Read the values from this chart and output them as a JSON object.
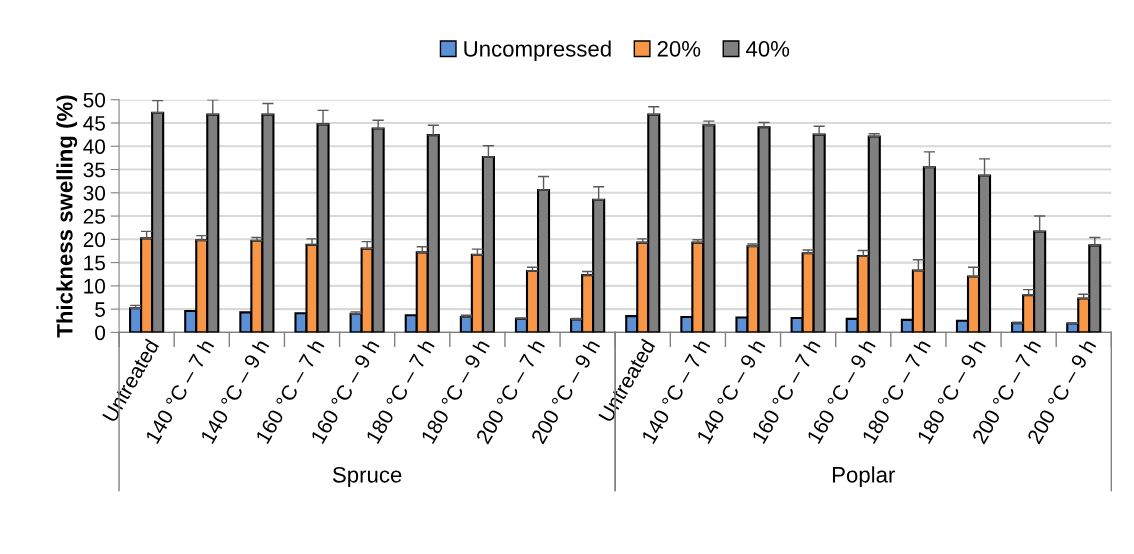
{
  "chart_data": {
    "type": "bar",
    "ylabel": "Thickness swelling (%)",
    "categories": [
      "Untreated",
      "140 °C – 7 h",
      "140 °C – 9 h",
      "160 °C – 7 h",
      "160 °C – 9 h",
      "180 °C – 7 h",
      "180 °C – 9 h",
      "200 °C – 7 h",
      "200 °C – 9 h",
      "Untreated",
      "140 °C – 7 h",
      "140 °C – 9 h",
      "160 °C – 7 h",
      "160 °C – 9 h",
      "180 °C – 7 h",
      "180 °C – 9 h",
      "200 °C – 7 h",
      "200 °C – 9 h"
    ],
    "annotations": [
      "Spruce",
      "Poplar"
    ],
    "series": [
      {
        "name": "Uncompressed",
        "color": "#5b8fd6",
        "values": [
          5.2,
          4.6,
          4.3,
          4.1,
          4.0,
          3.7,
          3.3,
          2.9,
          2.8,
          3.5,
          3.3,
          3.2,
          3.1,
          2.9,
          2.7,
          2.5,
          2.0,
          1.9
        ],
        "errors": [
          0.6,
          null,
          null,
          null,
          0.4,
          null,
          0.4,
          0.2,
          0.2,
          null,
          null,
          null,
          null,
          null,
          null,
          null,
          0.2,
          0.2
        ]
      },
      {
        "name": "20%",
        "color": "#f79646",
        "values": [
          20.2,
          19.8,
          19.7,
          18.8,
          18.0,
          17.2,
          16.7,
          13.2,
          12.3,
          19.3,
          19.3,
          18.5,
          17.0,
          16.4,
          13.3,
          12.0,
          8.0,
          7.3
        ],
        "errors": [
          1.5,
          1.0,
          0.7,
          1.3,
          1.5,
          1.2,
          1.2,
          0.8,
          0.8,
          0.8,
          0.6,
          0.5,
          0.7,
          1.2,
          2.3,
          2.0,
          1.2,
          0.9
        ]
      },
      {
        "name": "40%",
        "color": "#808080",
        "values": [
          47.2,
          46.8,
          46.8,
          44.7,
          43.8,
          42.4,
          37.7,
          30.6,
          28.5,
          46.8,
          44.5,
          44.1,
          42.5,
          42.1,
          35.5,
          33.7,
          21.7,
          18.7
        ],
        "errors": [
          2.6,
          3.2,
          2.4,
          3.0,
          1.8,
          2.1,
          2.4,
          2.9,
          2.8,
          1.7,
          0.9,
          1.0,
          1.8,
          0.6,
          3.3,
          3.6,
          3.3,
          1.7
        ]
      }
    ],
    "ylim": [
      0,
      50
    ],
    "yticks": [
      0,
      5,
      10,
      15,
      20,
      25,
      30,
      35,
      40,
      45,
      50
    ],
    "grid": "y",
    "legend": "top"
  }
}
